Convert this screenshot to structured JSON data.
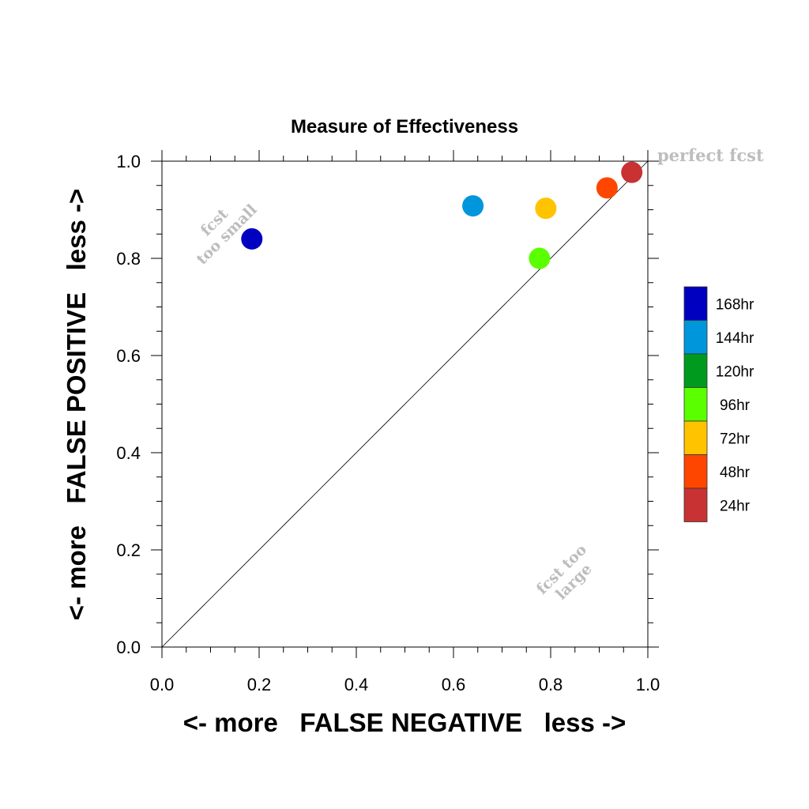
{
  "chart_data": {
    "type": "scatter",
    "title": "Measure of Effectiveness",
    "xlabel": "<- more   FALSE NEGATIVE   less ->",
    "ylabel": "<- more   FALSE POSITIVE   less ->",
    "xlim": [
      0.0,
      1.0
    ],
    "ylim": [
      0.0,
      1.0
    ],
    "xticks": [
      "0.0",
      "0.2",
      "0.4",
      "0.6",
      "0.8",
      "1.0"
    ],
    "yticks": [
      "0.0",
      "0.2",
      "0.4",
      "0.6",
      "0.8",
      "1.0"
    ],
    "grid": false,
    "diagonal_line": true,
    "annotations": {
      "perfect": "perfect fcst",
      "small_line1": "fcst",
      "small_line2": "too small",
      "large_line1": "fcst too",
      "large_line2": "large"
    },
    "legend": {
      "placement": "right",
      "entries": [
        {
          "label": "168hr",
          "color": "#0000c0"
        },
        {
          "label": "144hr",
          "color": "#0096dc"
        },
        {
          "label": "120hr",
          "color": "#009b1e"
        },
        {
          "label": "96hr",
          "color": "#5aff00"
        },
        {
          "label": "72hr",
          "color": "#ffc300"
        },
        {
          "label": "48hr",
          "color": "#ff4600"
        },
        {
          "label": "24hr",
          "color": "#c83232"
        }
      ]
    },
    "series": [
      {
        "lead": "168hr",
        "x": 0.185,
        "y": 0.84,
        "color": "#0000c0"
      },
      {
        "lead": "144hr",
        "x": 0.64,
        "y": 0.908,
        "color": "#0096dc"
      },
      {
        "lead": "96hr",
        "x": 0.777,
        "y": 0.8,
        "color": "#5aff00"
      },
      {
        "lead": "72hr",
        "x": 0.79,
        "y": 0.903,
        "color": "#ffc300"
      },
      {
        "lead": "48hr",
        "x": 0.916,
        "y": 0.945,
        "color": "#ff4600"
      },
      {
        "lead": "24hr",
        "x": 0.967,
        "y": 0.977,
        "color": "#c83232"
      }
    ]
  }
}
